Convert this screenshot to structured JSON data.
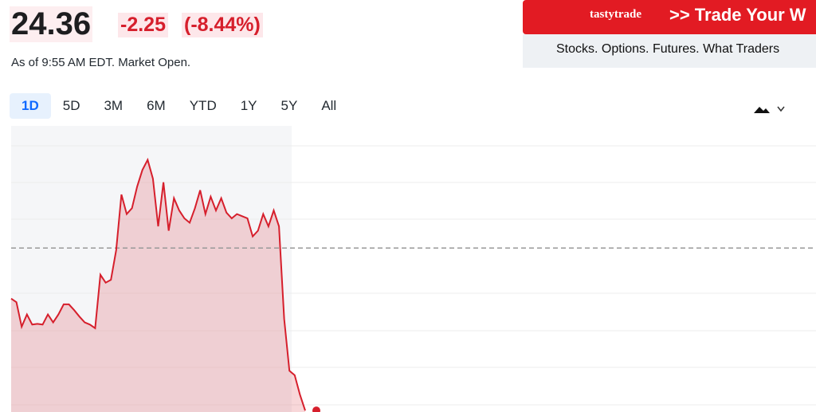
{
  "header": {
    "price": "24.36",
    "change": "-2.25",
    "change_percent": "(-8.44%)",
    "as_of": "As of 9:55 AM EDT. Market Open."
  },
  "tabs": [
    "1D",
    "5D",
    "3M",
    "6M",
    "YTD",
    "1Y",
    "5Y",
    "All"
  ],
  "ad": {
    "brand": "tastytrade",
    "headline": ">> Trade Your W",
    "tagline": "Stocks. Options. Futures. What Traders"
  },
  "chart_data": {
    "type": "line",
    "color": "#d61f2c",
    "values": [
      25.91,
      25.86,
      25.52,
      25.69,
      25.55,
      25.56,
      25.55,
      25.69,
      25.58,
      25.69,
      25.83,
      25.83,
      25.75,
      25.66,
      25.58,
      25.55,
      25.5,
      26.24,
      26.13,
      26.17,
      26.58,
      27.35,
      27.08,
      27.16,
      27.46,
      27.69,
      27.83,
      27.57,
      26.91,
      27.52,
      26.85,
      27.3,
      27.13,
      27.02,
      26.96,
      27.16,
      27.41,
      27.08,
      27.32,
      27.13,
      27.3,
      27.1,
      27.02,
      27.08,
      27.05,
      27.02,
      26.77,
      26.85,
      27.08,
      26.91,
      27.13,
      26.91,
      25.63,
      24.91,
      24.85,
      24.58,
      24.36
    ],
    "previous_close": 26.61,
    "ylim": [
      24.34,
      28.3
    ]
  }
}
